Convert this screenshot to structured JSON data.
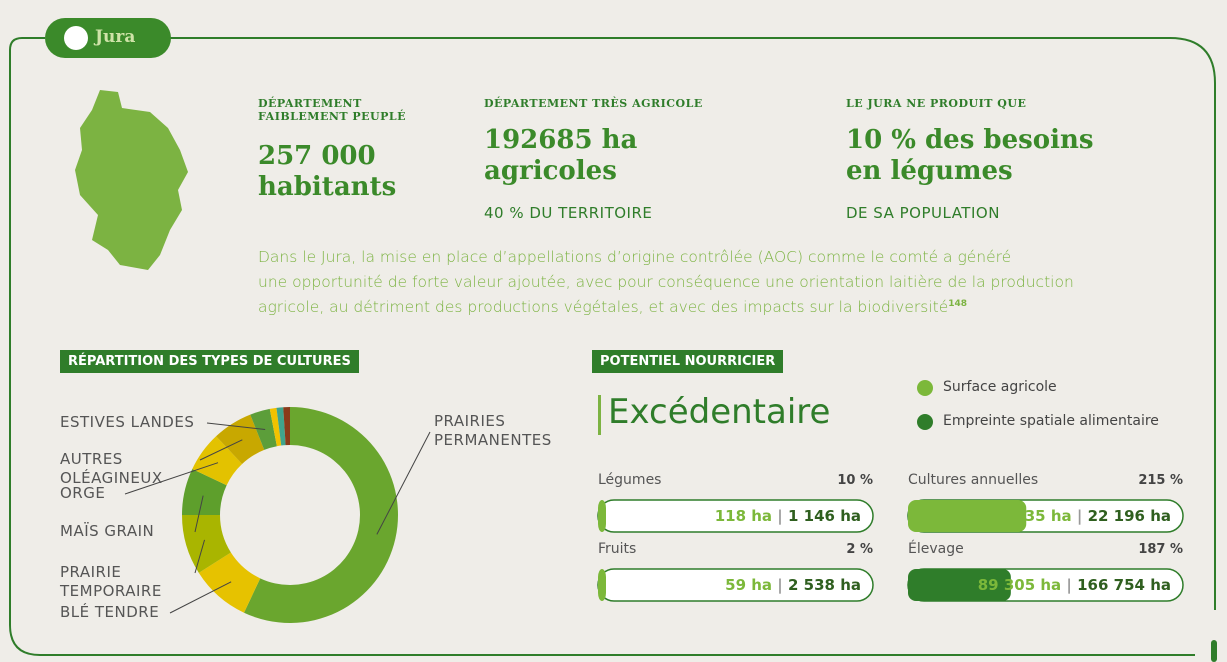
{
  "header": {
    "title": "Jura"
  },
  "stats": [
    {
      "label": "DÉPARTEMENT FAIBLEMENT PEUPLÉ",
      "value": "257 000 habitants"
    },
    {
      "label": "DÉPARTEMENT TRÈS AGRICOLE",
      "value": "192685 ha agricoles",
      "note": "40 % DU TERRITOIRE"
    },
    {
      "label": "LE JURA NE PRODUIT QUE",
      "value": "10 % des besoins en légumes",
      "note": "DE SA POPULATION"
    }
  ],
  "paragraph": {
    "lines": [
      "Dans le Jura, la mise en place d’appellations d’origine contrôlée (AOC) comme le comté a généré",
      "une opportunité de forte valeur ajoutée, avec pour conséquence une orientation laitière de la production",
      "agricole, au détriment des productions végétales, et avec des impacts sur la biodiversité"
    ],
    "note": "148"
  },
  "chart_data": {
    "type": "donut",
    "title": "RÉPARTITION DES TYPES DE CULTURES",
    "categories": [
      "PRAIRIES PERMANENTES",
      "BLÉ TENDRE",
      "PRAIRIE TEMPORAIRE",
      "MAÏS GRAIN",
      "ORGE",
      "AUTRES OLÉAGINEUX",
      "ESTIVES LANDES",
      null,
      null,
      null
    ],
    "values": [
      57,
      9,
      9,
      7,
      6,
      6,
      3,
      1,
      1,
      1
    ],
    "colors": [
      "#6aa62e",
      "#e6c200",
      "#a9b500",
      "#5e9f2c",
      "#e3c200",
      "#c8a800",
      "#5c9e3a",
      "#f1c200",
      "#3fa48c",
      "#8a3b1a"
    ]
  },
  "potential": {
    "title": "POTENTIEL NOURRICIER",
    "verdict": "Excédentaire",
    "legend": [
      {
        "name": "Surface agricole",
        "color": "#7cb83a"
      },
      {
        "name": "Empreinte spatiale alimentaire",
        "color": "#2f7d2a"
      }
    ],
    "items": [
      {
        "name": "Légumes",
        "value": 10,
        "value_label": "10 %",
        "surface": "118 ha",
        "footprint": "1 146 ha"
      },
      {
        "name": "Fruits",
        "value": 2,
        "value_label": "2 %",
        "surface": "59 ha",
        "footprint": "2 538 ha"
      },
      {
        "name": "Cultures annuelles",
        "value": 215,
        "value_label": "215 %",
        "surface": "10 335 ha",
        "footprint": "22 196 ha"
      },
      {
        "name": "Élevage",
        "value": 187,
        "value_label": "187 %",
        "surface": "89 305 ha",
        "footprint": "166 754 ha"
      }
    ]
  }
}
